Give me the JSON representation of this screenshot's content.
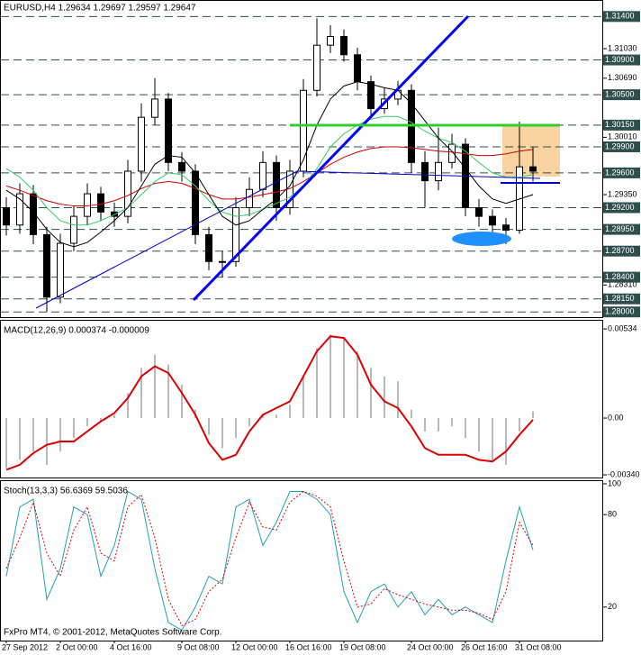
{
  "chart_data": [
    {
      "type": "candlestick",
      "title": "EURUSD,H4 1.29634 1.29697 1.29597 1.29647",
      "categories": [
        "27 Sep 2012",
        null,
        null,
        null,
        "2 Oct 00:00",
        null,
        null,
        null,
        "4 Oct 16:00",
        null,
        null,
        null,
        null,
        "9 Oct 08:00",
        null,
        null,
        null,
        "12 Oct 00:00",
        null,
        null,
        null,
        "16 Oct 16:00",
        null,
        null,
        null,
        "19 Oct 08:00",
        null,
        null,
        null,
        null,
        "24 Oct 00:00",
        null,
        null,
        null,
        "26 Oct 16:00",
        null,
        null,
        null,
        "31 Oct 08:00",
        null
      ],
      "open": [
        1.292,
        1.29,
        1.2936,
        1.2889,
        1.2817,
        1.2879,
        1.291,
        1.2936,
        1.2915,
        1.291,
        1.2962,
        1.3024,
        1.3045,
        1.2972,
        1.2962,
        1.2889,
        1.2858,
        1.2858,
        1.292,
        1.2941,
        1.2972,
        1.292,
        1.2962,
        1.3055,
        1.3107,
        1.3117,
        1.3096,
        1.3065,
        1.3034,
        1.3045,
        1.3055,
        1.2972,
        1.2951,
        1.2972,
        1.2993,
        1.292,
        1.291,
        1.29,
        1.2894,
        1.2967
      ],
      "high": [
        1.2932,
        1.2948,
        1.2946,
        1.2898,
        1.289,
        1.2922,
        1.2948,
        1.2944,
        1.2926,
        1.2975,
        1.304,
        1.3069,
        1.3052,
        1.2984,
        1.297,
        1.2898,
        1.287,
        1.2932,
        1.2955,
        1.2985,
        1.298,
        1.2975,
        1.3068,
        1.3138,
        1.313,
        1.3125,
        1.3104,
        1.3072,
        1.3058,
        1.3066,
        1.3062,
        1.2985,
        1.3012,
        1.3005,
        1.3,
        1.293,
        1.2918,
        1.2908,
        1.3019,
        1.299
      ],
      "low": [
        1.2888,
        1.289,
        1.2878,
        1.28,
        1.281,
        1.287,
        1.29,
        1.2905,
        1.2898,
        1.2902,
        1.295,
        1.3015,
        1.2962,
        1.295,
        1.2878,
        1.2848,
        1.284,
        1.2852,
        1.291,
        1.2932,
        1.2905,
        1.2912,
        1.2955,
        1.3048,
        1.3098,
        1.3088,
        1.3055,
        1.3025,
        1.3028,
        1.3038,
        1.296,
        1.292,
        1.294,
        1.2965,
        1.291,
        1.2898,
        1.2888,
        1.2878,
        1.289,
        1.295
      ],
      "close": [
        1.29,
        1.2936,
        1.2889,
        1.2817,
        1.2879,
        1.291,
        1.2936,
        1.2915,
        1.291,
        1.2962,
        1.3024,
        1.3045,
        1.2972,
        1.2962,
        1.2889,
        1.2858,
        1.2858,
        1.292,
        1.2941,
        1.2972,
        1.292,
        1.2962,
        1.3055,
        1.3107,
        1.3117,
        1.3096,
        1.3065,
        1.3034,
        1.3045,
        1.3055,
        1.2972,
        1.2951,
        1.2972,
        1.2993,
        1.292,
        1.291,
        1.29,
        1.2894,
        1.2967,
        1.2962
      ],
      "series": [
        {
          "color": "#cc0000",
          "values": [
            1.2945,
            1.294,
            1.2934,
            1.2928,
            1.2924,
            1.2922,
            1.2922,
            1.2924,
            1.2928,
            1.2934,
            1.2942,
            1.2948,
            1.295,
            1.2948,
            1.2942,
            1.2935,
            1.293,
            1.293,
            1.2932,
            1.2935,
            1.2938,
            1.2942,
            1.295,
            1.296,
            1.297,
            1.2978,
            1.2984,
            1.2988,
            1.299,
            1.299,
            1.2989,
            1.2987,
            1.2985,
            1.2984,
            1.2982,
            1.298,
            1.298,
            1.2982,
            1.2985,
            1.2987
          ]
        },
        {
          "color": "#33cc66",
          "values": [
            1.2965,
            1.2955,
            1.294,
            1.292,
            1.2905,
            1.29,
            1.29,
            1.2905,
            1.2912,
            1.292,
            1.2935,
            1.295,
            1.296,
            1.2958,
            1.2945,
            1.2928,
            1.2915,
            1.291,
            1.2912,
            1.2918,
            1.2925,
            1.2932,
            1.2945,
            1.2965,
            1.299,
            1.3005,
            1.3015,
            1.3022,
            1.3025,
            1.3025,
            1.3018,
            1.3008,
            1.3,
            1.2995,
            1.2985,
            1.2972,
            1.296,
            1.2955,
            1.2955,
            1.2958
          ]
        },
        {
          "color": "#000000",
          "values": [
            1.294,
            1.293,
            1.2915,
            1.2895,
            1.288,
            1.2875,
            1.288,
            1.2892,
            1.2905,
            1.292,
            1.2945,
            1.297,
            1.298,
            1.2978,
            1.296,
            1.2935,
            1.291,
            1.29,
            1.2905,
            1.2918,
            1.293,
            1.2945,
            1.2975,
            1.3015,
            1.3045,
            1.306,
            1.3065,
            1.3062,
            1.3058,
            1.3055,
            1.304,
            1.302,
            1.3,
            1.2985,
            1.2965,
            1.2945,
            1.293,
            1.2925,
            1.293,
            1.2935
          ]
        }
      ],
      "ylim": [
        1.2794,
        1.3159
      ],
      "yticks": [
        {
          "value": 1.3103,
          "label": "1.31030"
        },
        {
          "value": 1.3069,
          "label": "1.30690"
        },
        {
          "value": 1.3001,
          "label": "1.30010"
        },
        {
          "value": 1.2935,
          "label": "1.29350"
        },
        {
          "value": 1.2831,
          "label": "1.28310"
        }
      ],
      "levels": [
        {
          "value": 1.314,
          "label": "1.31400"
        },
        {
          "value": 1.309,
          "label": "1.30900"
        },
        {
          "value": 1.305,
          "label": "1.30500"
        },
        {
          "value": 1.3015,
          "label": "1.30150"
        },
        {
          "value": 1.299,
          "label": "1.29900"
        },
        {
          "value": 1.296,
          "label": "1.29600"
        },
        {
          "value": 1.292,
          "label": "1.29200"
        },
        {
          "value": 1.2895,
          "label": "1.28950"
        },
        {
          "value": 1.287,
          "label": "1.28700"
        },
        {
          "value": 1.284,
          "label": "1.28400"
        },
        {
          "value": 1.2815,
          "label": "1.28150"
        },
        {
          "value": 1.28,
          "label": "1.28000"
        }
      ],
      "level_color": "#2f4f4f"
    },
    {
      "type": "macd",
      "title": "MACD(12,26,9) 0.000374 -0.000009",
      "series": [
        {
          "color": "#b8b8b8",
          "style": "histogram",
          "values": [
            -0.003,
            -0.0025,
            -0.002,
            -0.0028,
            -0.002,
            -0.0012,
            -0.0005,
            -0.0002,
            0.0002,
            0.0015,
            0.003,
            0.0038,
            0.0032,
            0.002,
            0.0005,
            -0.001,
            -0.0018,
            -0.0012,
            -0.0005,
            0.0002,
            0.0002,
            0.0008,
            0.0025,
            0.0042,
            0.005,
            0.0048,
            0.004,
            0.003,
            0.0025,
            0.0022,
            0.0005,
            -0.0008,
            -0.0008,
            -0.0005,
            -0.0012,
            -0.002,
            -0.0026,
            -0.0028,
            -0.0008,
            0.0004
          ]
        },
        {
          "color": "#dd0000",
          "style": "line",
          "values": [
            -0.0031,
            -0.0028,
            -0.0021,
            -0.0016,
            -0.0014,
            -0.0014,
            -0.0008,
            -0.0002,
            0.0003,
            0.0012,
            0.0025,
            0.0031,
            0.0027,
            0.0015,
            0.0002,
            -0.0015,
            -0.0025,
            -0.0022,
            -0.0008,
            0.0002,
            0.0006,
            0.001,
            0.0025,
            0.004,
            0.0049,
            0.0048,
            0.0038,
            0.002,
            0.001,
            0.0006,
            -0.0005,
            -0.0018,
            -0.0022,
            -0.0022,
            -0.0022,
            -0.0025,
            -0.0026,
            -0.002,
            -0.001,
            -0.0001
          ]
        }
      ],
      "ylim": [
        -0.00356,
        0.00583
      ],
      "yticks": [
        0.00534,
        {
          "value": 0,
          "label": "0.00"
        },
        {
          "value": -0.0034,
          "label": "-0.00340"
        }
      ]
    },
    {
      "type": "stochastic",
      "title": "Stoch(13,3,3) 56.6369 59.5036",
      "note": "FxPro MT4, © 2001-2012, MetaQuotes Software Corp.",
      "series": [
        {
          "color": "#20a0b0",
          "values": [
            40,
            85,
            90,
            25,
            45,
            85,
            80,
            40,
            60,
            95,
            90,
            45,
            10,
            5,
            20,
            40,
            35,
            85,
            90,
            60,
            75,
            95,
            95,
            90,
            80,
            30,
            10,
            30,
            35,
            20,
            30,
            15,
            25,
            15,
            20,
            15,
            10,
            50,
            85,
            57
          ]
        },
        {
          "color": "#dd0000",
          "dash": true,
          "values": [
            45,
            65,
            88,
            55,
            40,
            70,
            85,
            55,
            50,
            85,
            93,
            65,
            25,
            8,
            12,
            30,
            38,
            65,
            88,
            72,
            70,
            88,
            95,
            92,
            85,
            50,
            20,
            22,
            32,
            28,
            25,
            22,
            20,
            18,
            18,
            16,
            12,
            30,
            75,
            60
          ]
        }
      ],
      "ylim": [
        0,
        100
      ],
      "yticks": [
        100,
        80,
        20
      ]
    }
  ]
}
